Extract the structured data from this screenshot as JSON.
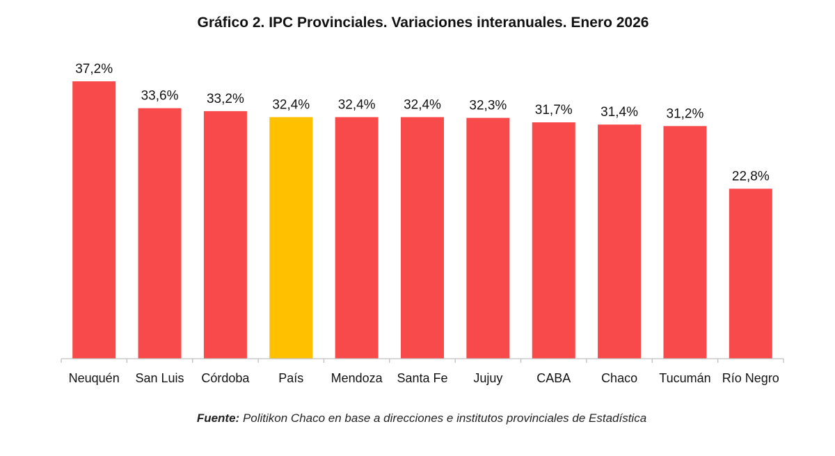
{
  "chart_data": {
    "type": "bar",
    "title": "Gráfico 2. IPC Provinciales. Variaciones interanuales. Enero 2026",
    "categories": [
      "Neuquén",
      "San Luis",
      "Córdoba",
      "País",
      "Mendoza",
      "Santa Fe",
      "Jujuy",
      "CABA",
      "Chaco",
      "Tucumán",
      "Río Negro"
    ],
    "values": [
      37.2,
      33.6,
      33.2,
      32.4,
      32.4,
      32.4,
      32.3,
      31.7,
      31.4,
      31.2,
      22.8
    ],
    "value_labels": [
      "37,2%",
      "33,6%",
      "33,2%",
      "32,4%",
      "32,4%",
      "32,4%",
      "32,3%",
      "31,7%",
      "31,4%",
      "31,2%",
      "22,8%"
    ],
    "highlight_category": "País",
    "colors": {
      "default": "#f84a4a",
      "highlight": "#ffc000",
      "axis": "#bfbfbf"
    },
    "xlabel": "",
    "ylabel": "",
    "ylim": [
      0,
      37.2
    ],
    "grid": false,
    "legend": "none"
  },
  "source": {
    "label": "Fuente:",
    "text": " Politikon Chaco en base a direcciones e institutos provinciales de Estadística"
  }
}
